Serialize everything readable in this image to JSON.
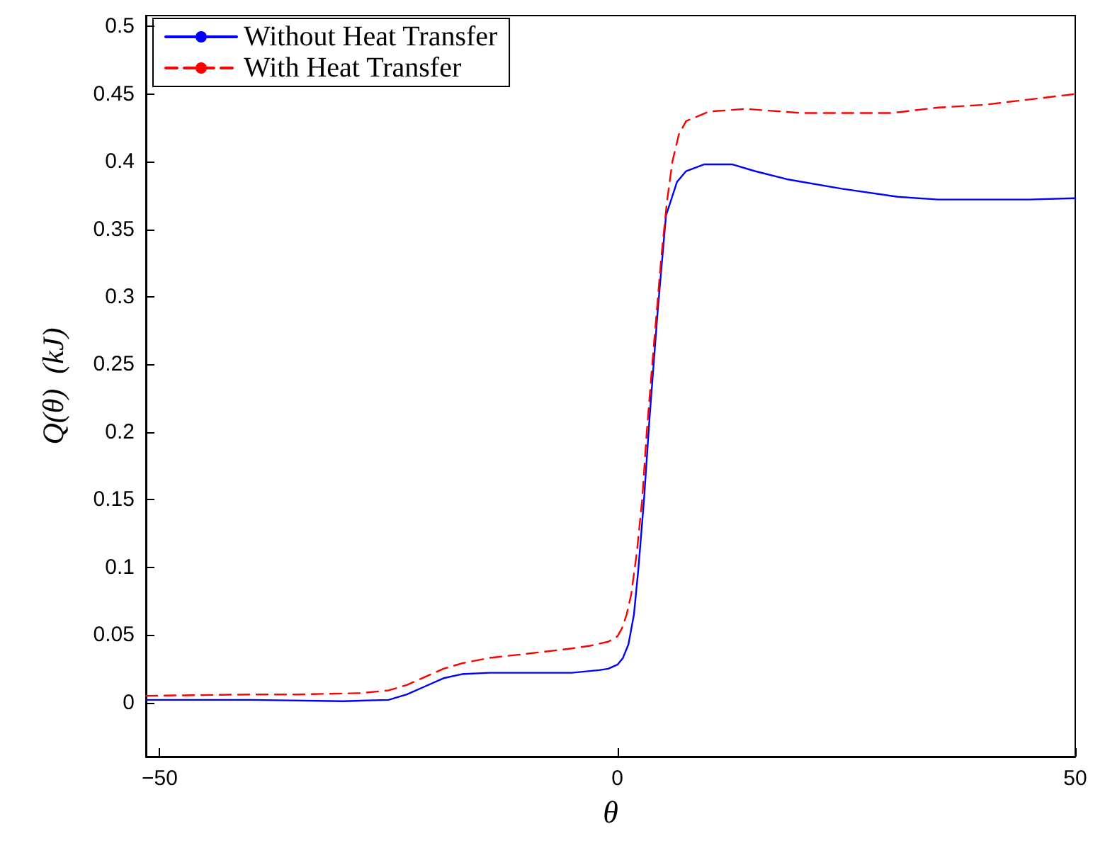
{
  "chart_data": {
    "type": "line",
    "xlabel": "θ",
    "ylabel": "Q(θ)  (kJ)",
    "xlim": [
      -51.5,
      50
    ],
    "xticks": [
      {
        "value": -50,
        "label": "−50"
      },
      0,
      50
    ],
    "ylim": [
      -0.04,
      0.508
    ],
    "yticks": [
      0,
      0.05,
      0.1,
      0.15,
      0.2,
      0.25,
      0.3,
      0.35,
      0.4,
      0.45,
      0.5
    ],
    "grid": false,
    "legend": "top left",
    "marker": "none",
    "series": [
      {
        "name": "Without Heat Transfer",
        "color": "#0000ff",
        "line_style": "solid",
        "x": [
          -51.5,
          -40,
          -30,
          -25,
          -23,
          -21,
          -19,
          -17,
          -14,
          -10,
          -5,
          -2,
          -1,
          0,
          0.6,
          1.2,
          1.8,
          2.3,
          2.9,
          3.5,
          4.4,
          5.3,
          6.5,
          7.5,
          9.5,
          12.5,
          15,
          18.5,
          24.5,
          30.6,
          35,
          39.6,
          45,
          50
        ],
        "values": [
          0.002,
          0.002,
          0.001,
          0.002,
          0.006,
          0.012,
          0.018,
          0.021,
          0.022,
          0.022,
          0.022,
          0.024,
          0.025,
          0.028,
          0.033,
          0.043,
          0.065,
          0.1,
          0.15,
          0.21,
          0.29,
          0.36,
          0.385,
          0.393,
          0.398,
          0.398,
          0.393,
          0.387,
          0.38,
          0.374,
          0.372,
          0.372,
          0.372,
          0.373
        ]
      },
      {
        "name": "With Heat Transfer",
        "color": "#ff0000",
        "line_style": "dashed",
        "x": [
          -51.5,
          -40,
          -35,
          -28,
          -25,
          -23,
          -21,
          -19,
          -17,
          -14,
          -10,
          -5,
          -3,
          -1,
          0,
          0.5,
          1,
          1.5,
          2.1,
          2.7,
          3.2,
          3.8,
          4.3,
          4.8,
          5.4,
          6,
          6.7,
          7.5,
          10,
          14,
          20,
          25,
          30,
          35,
          40,
          45,
          50
        ],
        "values": [
          0.005,
          0.006,
          0.006,
          0.007,
          0.009,
          0.013,
          0.019,
          0.025,
          0.029,
          0.033,
          0.036,
          0.04,
          0.042,
          0.045,
          0.049,
          0.055,
          0.065,
          0.08,
          0.11,
          0.15,
          0.2,
          0.25,
          0.29,
          0.33,
          0.37,
          0.4,
          0.42,
          0.43,
          0.437,
          0.439,
          0.436,
          0.436,
          0.436,
          0.44,
          0.442,
          0.446,
          0.45
        ]
      }
    ]
  }
}
